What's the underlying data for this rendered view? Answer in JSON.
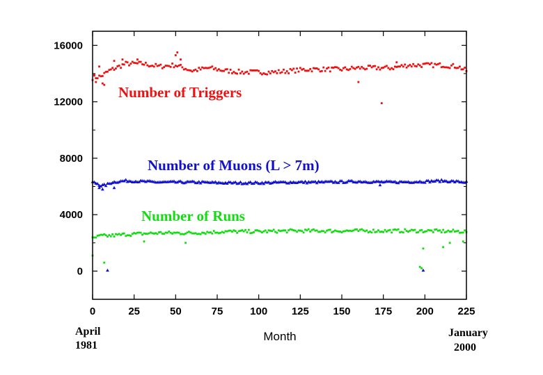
{
  "chart_data": {
    "type": "scatter",
    "xlabel": "Month",
    "x_start_label": [
      "April",
      "1981"
    ],
    "x_end_label": [
      "January",
      "2000"
    ],
    "xlim": [
      0,
      225
    ],
    "ylim": [
      -2000,
      17000
    ],
    "xticks": [
      0,
      25,
      50,
      75,
      100,
      125,
      150,
      175,
      200,
      225
    ],
    "yticks": [
      0,
      4000,
      8000,
      12000,
      16000
    ],
    "grid": false,
    "annotations": [
      {
        "text": "Number of Triggers",
        "color": "#ee1111"
      },
      {
        "text": "Number of Muons (L > 7m)",
        "color": "#1111cc"
      },
      {
        "text": "Number of Runs",
        "color": "#11dd11"
      }
    ],
    "series": [
      {
        "color": "#ee1111",
        "marker": "square",
        "base": [
          [
            0,
            13700
          ],
          [
            5,
            13800
          ],
          [
            10,
            14200
          ],
          [
            20,
            14700
          ],
          [
            30,
            14700
          ],
          [
            40,
            14500
          ],
          [
            50,
            14600
          ],
          [
            60,
            14200
          ],
          [
            70,
            14400
          ],
          [
            80,
            14200
          ],
          [
            90,
            14100
          ],
          [
            100,
            14100
          ],
          [
            110,
            14100
          ],
          [
            120,
            14200
          ],
          [
            130,
            14300
          ],
          [
            140,
            14300
          ],
          [
            150,
            14300
          ],
          [
            160,
            14400
          ],
          [
            170,
            14400
          ],
          [
            180,
            14400
          ],
          [
            190,
            14600
          ],
          [
            200,
            14600
          ],
          [
            210,
            14600
          ],
          [
            220,
            14500
          ],
          [
            225,
            14200
          ]
        ],
        "outliers": [
          [
            1,
            13900
          ],
          [
            2,
            13400
          ],
          [
            4,
            14500
          ],
          [
            6,
            13300
          ],
          [
            7,
            13200
          ],
          [
            13,
            14900
          ],
          [
            18,
            15000
          ],
          [
            27,
            15000
          ],
          [
            50,
            15300
          ],
          [
            51,
            15500
          ],
          [
            53,
            15000
          ],
          [
            160,
            13400
          ],
          [
            174,
            11900
          ],
          [
            183,
            14800
          ]
        ]
      },
      {
        "color": "#1111cc",
        "marker": "triangle",
        "base": [
          [
            0,
            6300
          ],
          [
            3,
            6200
          ],
          [
            5,
            6050
          ],
          [
            8,
            6100
          ],
          [
            12,
            6300
          ],
          [
            20,
            6400
          ],
          [
            40,
            6300
          ],
          [
            60,
            6300
          ],
          [
            80,
            6250
          ],
          [
            100,
            6250
          ],
          [
            120,
            6300
          ],
          [
            140,
            6300
          ],
          [
            160,
            6350
          ],
          [
            180,
            6300
          ],
          [
            200,
            6350
          ],
          [
            210,
            6400
          ],
          [
            225,
            6300
          ]
        ],
        "outliers": [
          [
            4,
            5900
          ],
          [
            6,
            5800
          ],
          [
            13,
            5900
          ],
          [
            173,
            6100
          ],
          [
            9,
            50
          ],
          [
            199,
            50
          ]
        ]
      },
      {
        "color": "#11dd11",
        "marker": "square",
        "base": [
          [
            0,
            2300
          ],
          [
            5,
            2500
          ],
          [
            10,
            2500
          ],
          [
            20,
            2600
          ],
          [
            40,
            2700
          ],
          [
            60,
            2700
          ],
          [
            80,
            2800
          ],
          [
            100,
            2800
          ],
          [
            120,
            2850
          ],
          [
            140,
            2850
          ],
          [
            160,
            2850
          ],
          [
            180,
            2850
          ],
          [
            200,
            2850
          ],
          [
            225,
            2800
          ]
        ],
        "outliers": [
          [
            0,
            1100
          ],
          [
            7,
            600
          ],
          [
            31,
            2100
          ],
          [
            56,
            2000
          ],
          [
            197,
            300
          ],
          [
            198,
            200
          ],
          [
            199,
            1600
          ],
          [
            211,
            1700
          ],
          [
            215,
            2000
          ],
          [
            223,
            2100
          ]
        ]
      }
    ]
  }
}
